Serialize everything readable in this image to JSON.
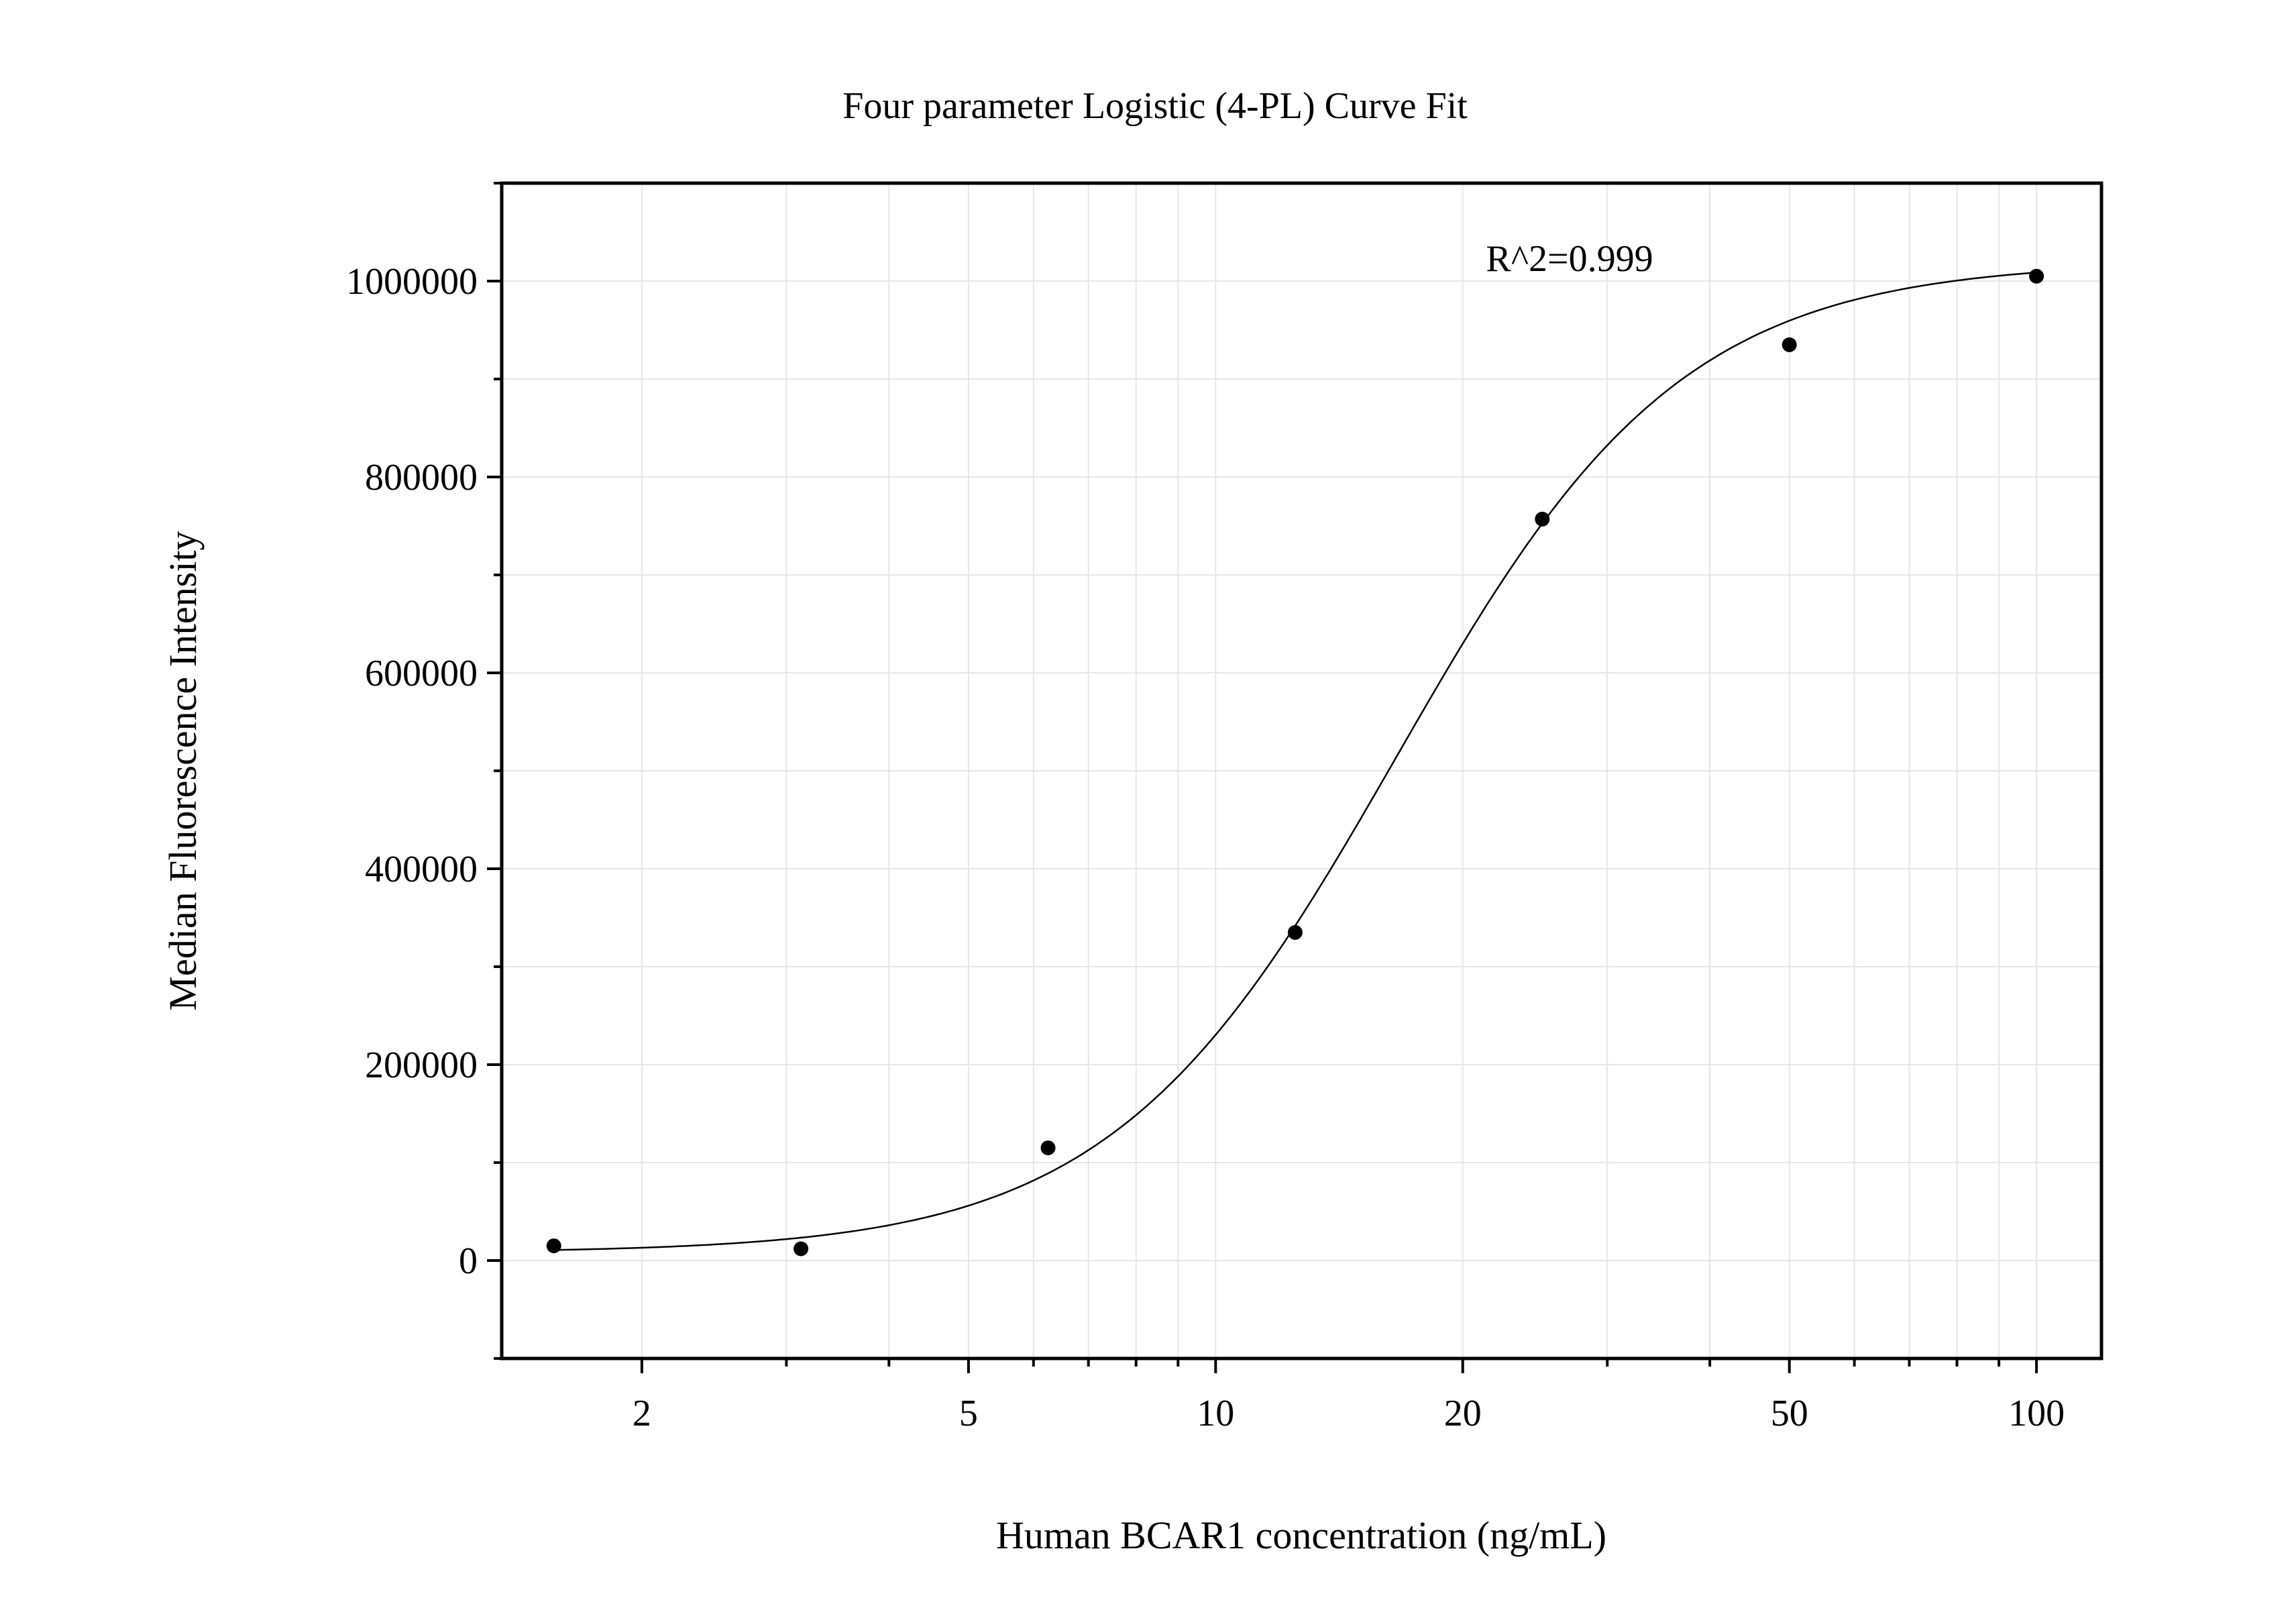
{
  "chart_data": {
    "type": "scatter",
    "title": "Four parameter Logistic (4-PL) Curve Fit",
    "xlabel": "Human BCAR1 concentration (ng/mL)",
    "ylabel": "Median Fluorescence Intensity",
    "x_scale": "log",
    "xlim": [
      1.35,
      120
    ],
    "ylim": [
      -100000,
      1100000
    ],
    "x_ticks": [
      2,
      5,
      10,
      20,
      50,
      100
    ],
    "x_tick_labels": [
      "2",
      "5",
      "10",
      "20",
      "50",
      "100"
    ],
    "y_ticks": [
      0,
      200000,
      400000,
      600000,
      800000,
      1000000
    ],
    "y_tick_labels": [
      "0",
      "200000",
      "400000",
      "600000",
      "800000",
      "1000000"
    ],
    "grid": true,
    "annotation": "R^2=0.999",
    "points": {
      "x": [
        1.5625,
        3.125,
        6.25,
        12.5,
        25,
        50,
        100
      ],
      "y": [
        15000,
        12000,
        115000,
        335000,
        757000,
        935000,
        1005000
      ]
    },
    "fit": {
      "model": "4PL",
      "bottom": 8000,
      "top": 1020000,
      "ec50": 16.6,
      "hill": 2.5,
      "x_range": [
        1.5625,
        100
      ]
    },
    "colors": {
      "axis": "#000000",
      "grid": "#e6e6e6",
      "points": "#000000",
      "curve": "#000000"
    }
  }
}
